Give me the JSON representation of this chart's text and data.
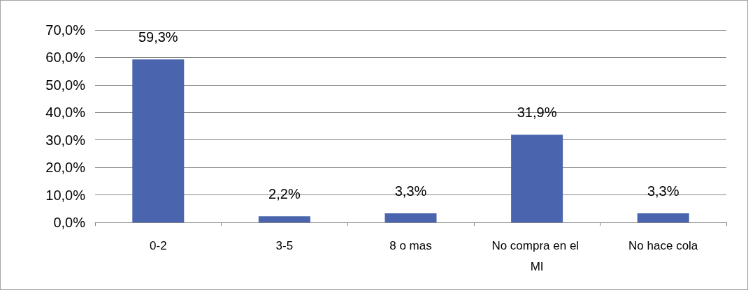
{
  "chart_data": {
    "type": "bar",
    "categories": [
      "0-2",
      "3-5",
      "8 o mas",
      "No compra en el MI",
      "No hace cola"
    ],
    "values": [
      59.3,
      2.2,
      3.3,
      31.9,
      3.3
    ],
    "value_labels": [
      "59,3%",
      "2,2%",
      "3,3%",
      "31,9%",
      "3,3%"
    ],
    "color": "#4a65ad",
    "ylim": [
      0,
      70
    ],
    "yticks": [
      {
        "value": 0,
        "label": "0,0%"
      },
      {
        "value": 10,
        "label": "10,0%"
      },
      {
        "value": 20,
        "label": "20,0%"
      },
      {
        "value": 30,
        "label": "30,0%"
      },
      {
        "value": 40,
        "label": "40,0%"
      },
      {
        "value": 50,
        "label": "50,0%"
      },
      {
        "value": 60,
        "label": "60,0%"
      },
      {
        "value": 70,
        "label": "70,0%"
      }
    ],
    "grid": "y"
  }
}
